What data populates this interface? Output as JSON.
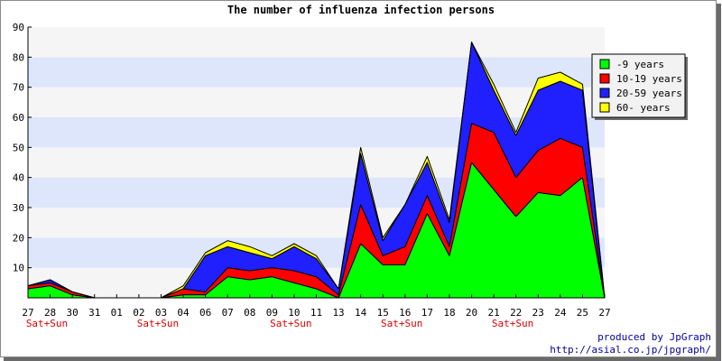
{
  "chart_data": {
    "type": "area",
    "stacked": true,
    "title": "The number of influenza infection persons",
    "xlabel": "",
    "ylabel": "",
    "ylim": [
      0,
      90
    ],
    "yticks": [
      10,
      20,
      30,
      40,
      50,
      60,
      70,
      80,
      90
    ],
    "grid": true,
    "legend_position": "top-right",
    "x": [
      "27",
      "28",
      "30",
      "31",
      "01",
      "02",
      "03",
      "04",
      "06",
      "07",
      "08",
      "09",
      "10",
      "11",
      "13",
      "14",
      "15",
      "16",
      "17",
      "18",
      "20",
      "21",
      "22",
      "23",
      "24",
      "25",
      "27"
    ],
    "weekend_label": "Sat+Sun",
    "weekend_marks": [
      "27",
      "02",
      "09",
      "15",
      "21"
    ],
    "series": [
      {
        "name": "-9 years",
        "color": "#00ff00",
        "values": [
          3,
          4,
          1,
          0,
          0,
          0,
          0,
          1,
          1,
          7,
          6,
          7,
          5,
          3,
          0,
          18,
          11,
          11,
          28,
          14,
          45,
          36,
          27,
          35,
          34,
          40,
          0
        ]
      },
      {
        "name": "10-19 years",
        "color": "#ff0000",
        "values": [
          1,
          1,
          1,
          0,
          0,
          0,
          0,
          2,
          1,
          3,
          3,
          3,
          4,
          4,
          1,
          13,
          3,
          6,
          6,
          3,
          13,
          19,
          13,
          14,
          19,
          10,
          0
        ]
      },
      {
        "name": "20-59 years",
        "color": "#2020ff",
        "values": [
          0,
          1,
          0,
          0,
          0,
          0,
          0,
          0,
          12,
          7,
          6,
          3,
          8,
          6,
          2,
          17,
          5,
          14,
          11,
          8,
          27,
          14,
          14,
          20,
          19,
          19,
          0
        ]
      },
      {
        "name": "60- years",
        "color": "#ffff00",
        "values": [
          0,
          0,
          0,
          0,
          0,
          0,
          0,
          1,
          1,
          2,
          2,
          1,
          1,
          1,
          0,
          2,
          1,
          0,
          2,
          1,
          0,
          2,
          1,
          4,
          3,
          2,
          0
        ]
      }
    ]
  },
  "credit": {
    "line1": "produced by JpGraph",
    "line2": "http://asial.co.jp/jpgraph/"
  }
}
